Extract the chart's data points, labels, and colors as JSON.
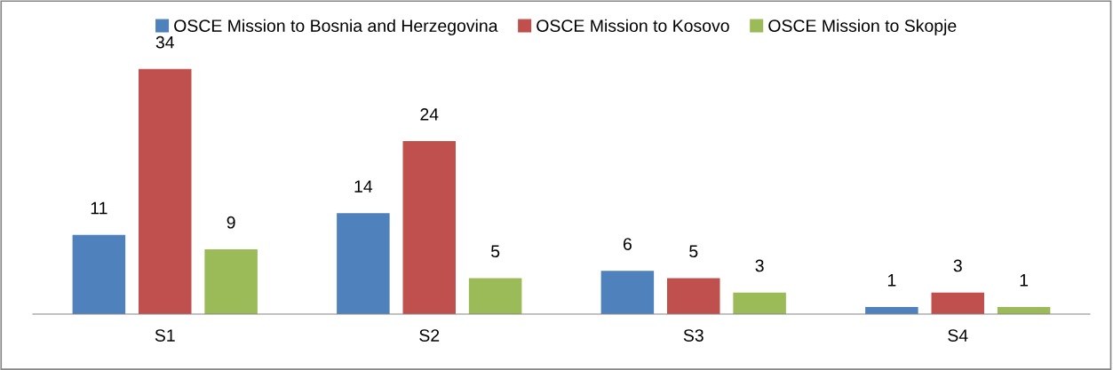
{
  "chart_data": {
    "type": "bar",
    "categories": [
      "S1",
      "S2",
      "S3",
      "S4"
    ],
    "series": [
      {
        "name": "OSCE Mission to Bosnia and Herzegovina",
        "color": "#4f81bd",
        "values": [
          11,
          14,
          6,
          1
        ]
      },
      {
        "name": "OSCE Mission to Kosovo",
        "color": "#c0504d",
        "values": [
          34,
          24,
          5,
          3
        ]
      },
      {
        "name": "OSCE Mission to Skopje",
        "color": "#9bbb59",
        "values": [
          9,
          5,
          3,
          1
        ]
      }
    ],
    "data_labels": true,
    "legend": "top",
    "grid": false
  }
}
